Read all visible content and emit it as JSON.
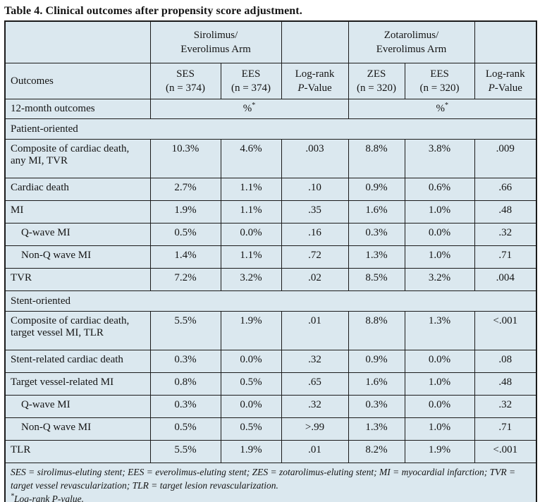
{
  "title": "Table 4. Clinical outcomes after propensity score adjustment.",
  "table": {
    "arm_headers": {
      "arm1": "Sirolimus/\nEverolimus Arm",
      "arm2": "Zotarolimus/\nEverolimus Arm"
    },
    "col_headers": {
      "outcomes": "Outcomes",
      "ses": "SES\n(n = 374)",
      "ees1": "EES\n(n = 374)",
      "zes": "ZES\n(n = 320)",
      "ees2": "EES\n(n = 320)",
      "logrank_line1": "Log-rank",
      "logrank_p_italic": "P",
      "logrank_p_rest": "-Value"
    },
    "subheader": {
      "label": "12-month outcomes",
      "unit": "%",
      "unit_sup": "*"
    },
    "sections": [
      {
        "label": "Patient-oriented",
        "rows": [
          {
            "label": "Composite of cardiac death, any MI, TVR",
            "indent": false,
            "values": [
              "10.3%",
              "4.6%",
              ".003",
              "8.8%",
              "3.8%",
              ".009"
            ]
          },
          {
            "label": "Cardiac death",
            "indent": false,
            "values": [
              "2.7%",
              "1.1%",
              ".10",
              "0.9%",
              "0.6%",
              ".66"
            ]
          },
          {
            "label": "MI",
            "indent": false,
            "values": [
              "1.9%",
              "1.1%",
              ".35",
              "1.6%",
              "1.0%",
              ".48"
            ]
          },
          {
            "label": "Q-wave MI",
            "indent": true,
            "values": [
              "0.5%",
              "0.0%",
              ".16",
              "0.3%",
              "0.0%",
              ".32"
            ]
          },
          {
            "label": "Non-Q wave MI",
            "indent": true,
            "values": [
              "1.4%",
              "1.1%",
              ".72",
              "1.3%",
              "1.0%",
              ".71"
            ]
          },
          {
            "label": "TVR",
            "indent": false,
            "values": [
              "7.2%",
              "3.2%",
              ".02",
              "8.5%",
              "3.2%",
              ".004"
            ]
          }
        ]
      },
      {
        "label": "Stent-oriented",
        "rows": [
          {
            "label": "Composite of cardiac death, target vessel MI, TLR",
            "indent": false,
            "values": [
              "5.5%",
              "1.9%",
              ".01",
              "8.8%",
              "1.3%",
              "<.001"
            ]
          },
          {
            "label": "Stent-related cardiac death",
            "indent": false,
            "values": [
              "0.3%",
              "0.0%",
              ".32",
              "0.9%",
              "0.0%",
              ".08"
            ]
          },
          {
            "label": "Target vessel-related MI",
            "indent": false,
            "values": [
              "0.8%",
              "0.5%",
              ".65",
              "1.6%",
              "1.0%",
              ".48"
            ]
          },
          {
            "label": "Q-wave MI",
            "indent": true,
            "values": [
              "0.3%",
              "0.0%",
              ".32",
              "0.3%",
              "0.0%",
              ".32"
            ]
          },
          {
            "label": "Non-Q wave MI",
            "indent": true,
            "values": [
              "0.5%",
              "0.5%",
              ">.99",
              "1.3%",
              "1.0%",
              ".71"
            ]
          },
          {
            "label": "TLR",
            "indent": false,
            "values": [
              "5.5%",
              "1.9%",
              ".01",
              "8.2%",
              "1.9%",
              "<.001"
            ]
          }
        ]
      }
    ],
    "footnotes": {
      "abbreviations": "SES = sirolimus-eluting stent; EES = everolimus-eluting stent; ZES = zotarolimus-eluting stent; MI = myocardial infarction; TVR = target vessel revascularization; TLR = target lesion revascularization.",
      "note_sup": "*",
      "note": "Log-rank P-value."
    }
  },
  "colors": {
    "cell_bg": "#dbe8ef",
    "border": "#1b1b1b",
    "text": "#141414",
    "page_bg": "#ffffff"
  }
}
